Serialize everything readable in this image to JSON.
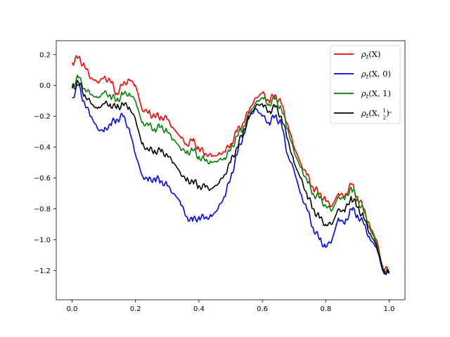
{
  "chart_data": {
    "type": "line",
    "title": "",
    "xlabel": "",
    "ylabel": "",
    "xlim": [
      -0.05,
      1.05
    ],
    "ylim": [
      -1.39,
      0.29
    ],
    "xticks": [
      0.0,
      0.2,
      0.4,
      0.6,
      0.8,
      1.0
    ],
    "xtick_labels": [
      "0.0",
      "0.2",
      "0.4",
      "0.6",
      "0.8",
      "1.0"
    ],
    "yticks": [
      0.2,
      0.0,
      -0.2,
      -0.4,
      -0.6,
      -0.8,
      -1.0,
      -1.2
    ],
    "ytick_labels": [
      "0.2",
      "0.0",
      "−0.2",
      "−0.4",
      "−0.6",
      "−0.8",
      "−1.0",
      "−1.2"
    ],
    "grid": false,
    "legend_position": "top-right",
    "x": [
      0.0,
      0.02,
      0.04,
      0.06,
      0.08,
      0.1,
      0.12,
      0.14,
      0.16,
      0.18,
      0.2,
      0.22,
      0.24,
      0.26,
      0.28,
      0.3,
      0.32,
      0.34,
      0.36,
      0.38,
      0.4,
      0.42,
      0.44,
      0.46,
      0.48,
      0.5,
      0.52,
      0.54,
      0.56,
      0.58,
      0.6,
      0.62,
      0.64,
      0.66,
      0.68,
      0.7,
      0.72,
      0.74,
      0.76,
      0.78,
      0.8,
      0.82,
      0.84,
      0.86,
      0.88,
      0.9,
      0.92,
      0.94,
      0.96,
      0.98,
      1.0
    ],
    "series": [
      {
        "name": "ρt(X)",
        "legend_main": "ρ",
        "legend_sub": "t",
        "legend_args": "(X)",
        "color": "#ff0000",
        "values": [
          0.15,
          0.18,
          0.12,
          0.05,
          0.02,
          0.05,
          0.03,
          -0.05,
          0.0,
          0.04,
          0.0,
          -0.15,
          -0.18,
          -0.2,
          -0.2,
          -0.22,
          -0.28,
          -0.33,
          -0.38,
          -0.36,
          -0.41,
          -0.44,
          -0.46,
          -0.45,
          -0.43,
          -0.38,
          -0.3,
          -0.24,
          -0.15,
          -0.08,
          -0.05,
          -0.1,
          -0.06,
          -0.12,
          -0.25,
          -0.4,
          -0.5,
          -0.58,
          -0.66,
          -0.7,
          -0.75,
          -0.78,
          -0.7,
          -0.72,
          -0.64,
          -0.72,
          -0.8,
          -0.92,
          -1.0,
          -1.18,
          -1.2
        ]
      },
      {
        "name": "ρt(X, 0)",
        "legend_main": "ρ",
        "legend_sub": "t",
        "legend_args": "(X, 0)",
        "color": "#0000ff",
        "values": [
          -0.08,
          0.0,
          -0.12,
          -0.2,
          -0.28,
          -0.3,
          -0.25,
          -0.22,
          -0.2,
          -0.28,
          -0.45,
          -0.58,
          -0.62,
          -0.6,
          -0.62,
          -0.65,
          -0.7,
          -0.75,
          -0.85,
          -0.88,
          -0.85,
          -0.86,
          -0.85,
          -0.8,
          -0.72,
          -0.6,
          -0.45,
          -0.32,
          -0.2,
          -0.15,
          -0.2,
          -0.24,
          -0.2,
          -0.25,
          -0.45,
          -0.55,
          -0.7,
          -0.8,
          -0.92,
          -1.0,
          -1.05,
          -1.0,
          -0.86,
          -0.9,
          -0.8,
          -0.84,
          -0.9,
          -1.0,
          -1.05,
          -1.2,
          -1.22
        ]
      },
      {
        "name": "ρt(X, 1)",
        "legend_main": "ρ",
        "legend_sub": "t",
        "legend_args": "(X, 1)",
        "color": "#008000",
        "values": [
          0.0,
          0.05,
          -0.02,
          -0.06,
          -0.08,
          -0.05,
          -0.06,
          -0.1,
          -0.06,
          -0.05,
          -0.1,
          -0.24,
          -0.26,
          -0.28,
          -0.27,
          -0.3,
          -0.35,
          -0.4,
          -0.44,
          -0.42,
          -0.46,
          -0.49,
          -0.5,
          -0.49,
          -0.47,
          -0.42,
          -0.33,
          -0.27,
          -0.18,
          -0.11,
          -0.08,
          -0.12,
          -0.09,
          -0.15,
          -0.28,
          -0.43,
          -0.53,
          -0.61,
          -0.7,
          -0.73,
          -0.78,
          -0.81,
          -0.72,
          -0.74,
          -0.66,
          -0.74,
          -0.82,
          -0.93,
          -1.02,
          -1.19,
          -1.21
        ]
      },
      {
        "name": "ρt(X, 1/2)",
        "legend_main": "ρ",
        "legend_sub": "t",
        "legend_args_pre": "(X, ",
        "legend_frac_num": "1",
        "legend_frac_den": "2",
        "legend_args_post": ")",
        "color": "#000000",
        "values": [
          -0.02,
          0.02,
          -0.06,
          -0.12,
          -0.15,
          -0.12,
          -0.12,
          -0.15,
          -0.12,
          -0.14,
          -0.22,
          -0.38,
          -0.42,
          -0.42,
          -0.43,
          -0.45,
          -0.5,
          -0.56,
          -0.62,
          -0.62,
          -0.65,
          -0.66,
          -0.67,
          -0.64,
          -0.58,
          -0.5,
          -0.4,
          -0.3,
          -0.2,
          -0.13,
          -0.12,
          -0.17,
          -0.14,
          -0.2,
          -0.35,
          -0.5,
          -0.6,
          -0.7,
          -0.8,
          -0.86,
          -0.9,
          -0.9,
          -0.8,
          -0.82,
          -0.72,
          -0.79,
          -0.86,
          -0.96,
          -1.04,
          -1.2,
          -1.22
        ]
      }
    ]
  }
}
